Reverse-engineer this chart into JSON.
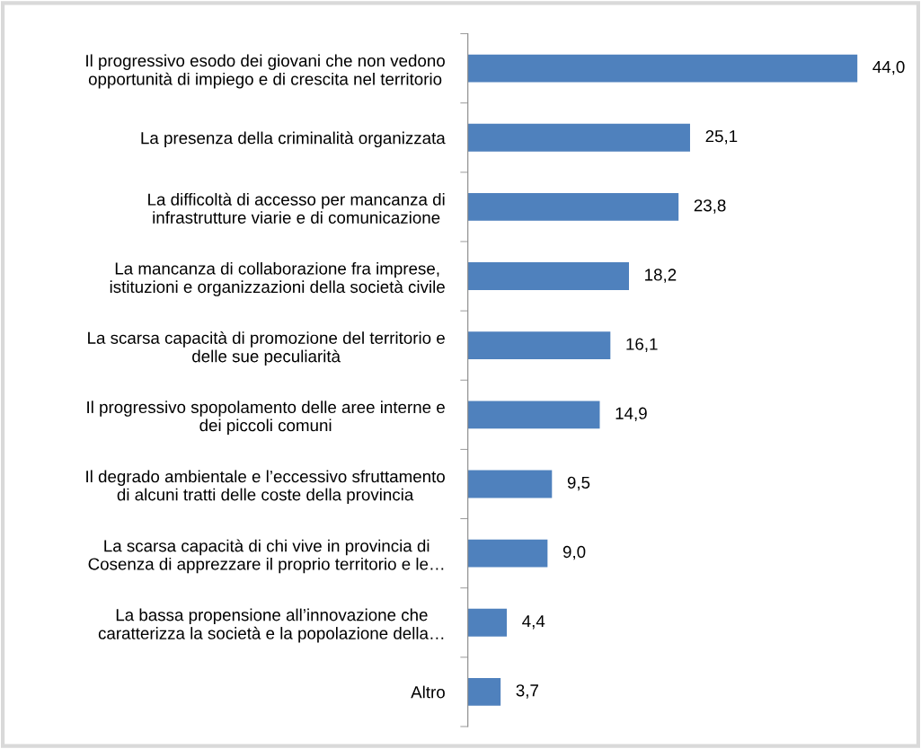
{
  "chart_data": {
    "type": "bar",
    "orientation": "horizontal",
    "categories": [
      "Il progressivo esodo dei giovani che non vedono\nopportunità di impiego e di crescita nel territorio",
      "La presenza della criminalità organizzata",
      "La difficoltà di accesso per mancanza di\ninfrastrutture viarie e di comunicazione",
      "La mancanza di collaborazione fra imprese,\nistituzioni e organizzazioni della società civile",
      "La scarsa capacità di promozione del territorio e\ndelle sue peculiarità",
      "Il progressivo spopolamento delle aree interne e\ndei piccoli comuni",
      "Il degrado ambientale e l’eccessivo sfruttamento\ndi alcuni tratti delle coste della provincia",
      "La scarsa capacità di chi vive in provincia di\nCosenza di apprezzare il proprio territorio e le…",
      "La bassa propensione all’innovazione che\ncaratterizza la società e la popolazione della…",
      "Altro"
    ],
    "values": [
      44.0,
      25.1,
      23.8,
      18.2,
      16.1,
      14.9,
      9.5,
      9.0,
      4.4,
      3.7
    ],
    "value_labels": [
      "44,0",
      "25,1",
      "23,8",
      "18,2",
      "16,1",
      "14,9",
      "9,5",
      "9,0",
      "4,4",
      "3,7"
    ],
    "color": "#4f81bd"
  }
}
